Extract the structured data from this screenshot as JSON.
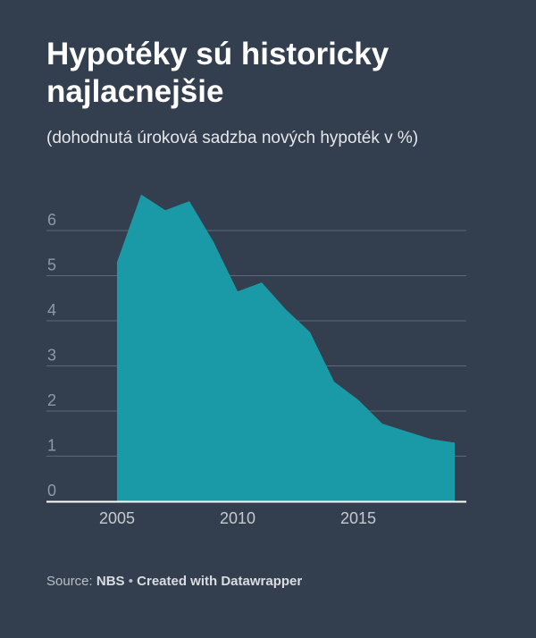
{
  "title": "Hypotéky sú historicky najlacnejšie",
  "subtitle": "(dohodnutá úroková sadzba nových hypoték v %)",
  "footer": {
    "source_label": "Source:",
    "source_name": "NBS",
    "separator": "•",
    "created_with": "Created with Datawrapper"
  },
  "colors": {
    "background": "#333f4f",
    "area": "#1a9aa6",
    "gridline": "#5d6878",
    "baseline": "#ffffff",
    "tick_text": "#8f99a6"
  },
  "chart_data": {
    "type": "area",
    "title": "Hypotéky sú historicky najlacnejšie",
    "subtitle": "(dohodnutá úroková sadzba nových hypoték v %)",
    "x": [
      2005,
      2006,
      2007,
      2008,
      2009,
      2010,
      2011,
      2012,
      2013,
      2014,
      2015,
      2016,
      2017,
      2018,
      2019
    ],
    "values": [
      5.3,
      6.8,
      6.45,
      6.65,
      5.75,
      4.65,
      4.85,
      4.25,
      3.75,
      2.65,
      2.25,
      1.72,
      1.55,
      1.38,
      1.3
    ],
    "x_ticks": [
      "2005",
      "2010",
      "2015"
    ],
    "y_ticks": [
      "0",
      "1",
      "2",
      "3",
      "4",
      "5",
      "6"
    ],
    "xlim": [
      2005,
      2019
    ],
    "ylim": [
      0,
      6.8
    ],
    "grid": true
  }
}
